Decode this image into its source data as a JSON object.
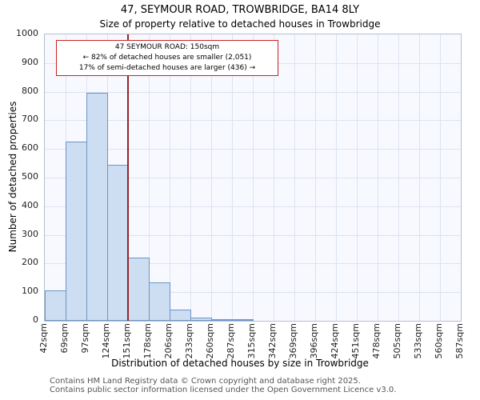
{
  "chart_data": {
    "type": "bar",
    "title": "47, SEYMOUR ROAD, TROWBRIDGE, BA14 8LY",
    "subtitle": "Size of property relative to detached houses in Trowbridge",
    "xlabel": "Distribution of detached houses by size in Trowbridge",
    "ylabel": "Number of detached properties",
    "categories": [
      "42sqm",
      "69sqm",
      "97sqm",
      "124sqm",
      "151sqm",
      "178sqm",
      "206sqm",
      "233sqm",
      "260sqm",
      "287sqm",
      "315sqm",
      "342sqm",
      "369sqm",
      "396sqm",
      "424sqm",
      "451sqm",
      "478sqm",
      "505sqm",
      "533sqm",
      "560sqm",
      "587sqm"
    ],
    "bin_values": [
      105,
      625,
      795,
      545,
      220,
      135,
      40,
      12,
      5,
      7,
      0,
      0,
      0,
      0,
      0,
      0,
      0,
      0,
      0,
      0
    ],
    "ylim": [
      0,
      1000
    ],
    "ytick_step": 100,
    "axis_min_sqm": 42,
    "axis_max_sqm": 587,
    "grid": true,
    "legend": "none",
    "marker": {
      "value_sqm": 150,
      "color": "#952424"
    },
    "annotation": {
      "line1": "47 SEYMOUR ROAD: 150sqm",
      "line2": "← 82% of detached houses are smaller (2,051)",
      "line3": "17% of semi-detached houses are larger (436) →",
      "border_color": "#cc2222"
    },
    "colors": {
      "bar_fill": "#cdddf2",
      "bar_stroke": "#6b96c8",
      "grid": "#dce3f0",
      "plot_bg": "#f7f9fe"
    }
  },
  "footer": {
    "line1": "Contains HM Land Registry data © Crown copyright and database right 2025.",
    "line2": "Contains public sector information licensed under the Open Government Licence v3.0."
  }
}
